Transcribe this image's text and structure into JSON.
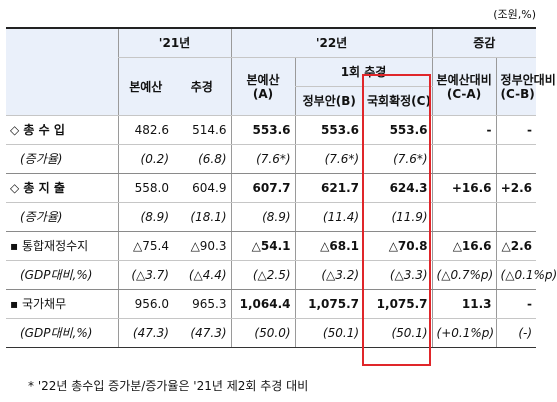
{
  "unit": "(조원,%)",
  "headers": {
    "y21": "'21년",
    "y22": "'22년",
    "change": "증감",
    "base21": "본예산",
    "supp21": "추경",
    "base22": "본예산",
    "base22_sub": "(A)",
    "supp1": "1회 추경",
    "gov": "정부안(B)",
    "assembly": "국회확정(C)",
    "vs_base": "본예산대비",
    "vs_base_sub": "(C-A)",
    "vs_gov": "정부안대비",
    "vs_gov_sub": "(C-B)"
  },
  "rows": [
    {
      "label": "◇ 총 수 입",
      "cells": [
        "482.6",
        "514.6",
        "553.6",
        "553.6",
        "553.6",
        "-",
        "-"
      ]
    },
    {
      "label": "(증가율)",
      "cells": [
        "(0.2)",
        "(6.8)",
        "(7.6*)",
        "(7.6*)",
        "(7.6*)",
        "",
        ""
      ]
    },
    {
      "label": "◇ 총 지 출",
      "cells": [
        "558.0",
        "604.9",
        "607.7",
        "621.7",
        "624.3",
        "+16.6",
        "+2.6"
      ]
    },
    {
      "label": "(증가율)",
      "cells": [
        "(8.9)",
        "(18.1)",
        "(8.9)",
        "(11.4)",
        "(11.9)",
        "",
        ""
      ]
    },
    {
      "label": "▪ 통합재정수지",
      "cells": [
        "△75.4",
        "△90.3",
        "△54.1",
        "△68.1",
        "△70.8",
        "△16.6",
        "△2.6"
      ]
    },
    {
      "label": "(GDP대비,%)",
      "cells": [
        "(△3.7)",
        "(△4.4)",
        "(△2.5)",
        "(△3.2)",
        "(△3.3)",
        "(△0.7%p)",
        "(△0.1%p)"
      ]
    },
    {
      "label": "▪ 국가채무",
      "cells": [
        "956.0",
        "965.3",
        "1,064.4",
        "1,075.7",
        "1,075.7",
        "11.3",
        "-"
      ]
    },
    {
      "label": "(GDP대비,%)",
      "cells": [
        "(47.3)",
        "(47.3)",
        "(50.0)",
        "(50.1)",
        "(50.1)",
        "(+0.1%p)",
        "(-)"
      ]
    }
  ],
  "footnote": "* '22년 총수입 증가분/증가율은 '21년 제2회 추경 대비"
}
